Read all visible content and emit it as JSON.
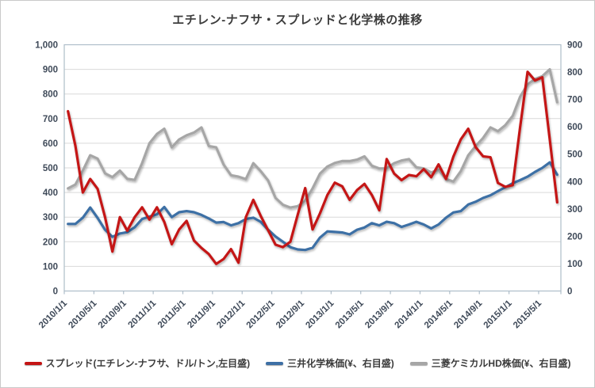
{
  "title": "エチレン-ナフサ・スプレッドと化学株の推移",
  "chart_data": {
    "type": "line",
    "title": "エチレン-ナフサ・スプレッドと化学株の推移",
    "grid": "horizontal",
    "legend_position": "bottom",
    "categories": [
      "2010/1",
      "2010/2",
      "2010/3",
      "2010/4",
      "2010/5",
      "2010/6",
      "2010/7",
      "2010/8",
      "2010/9",
      "2010/10",
      "2010/11",
      "2010/12",
      "2011/1",
      "2011/2",
      "2011/3",
      "2011/4",
      "2011/5",
      "2011/6",
      "2011/7",
      "2011/8",
      "2011/9",
      "2011/10",
      "2011/11",
      "2011/12",
      "2012/1",
      "2012/2",
      "2012/3",
      "2012/4",
      "2012/5",
      "2012/6",
      "2012/7",
      "2012/8",
      "2012/9",
      "2012/10",
      "2012/11",
      "2012/12",
      "2013/1",
      "2013/2",
      "2013/3",
      "2013/4",
      "2013/5",
      "2013/6",
      "2013/7",
      "2013/8",
      "2013/9",
      "2013/10",
      "2013/11",
      "2013/12",
      "2014/1",
      "2014/2",
      "2014/3",
      "2014/4",
      "2014/5",
      "2014/6",
      "2014/7",
      "2014/8",
      "2014/9",
      "2014/10",
      "2014/11",
      "2014/12",
      "2015/1",
      "2015/2",
      "2015/3",
      "2015/4",
      "2015/5",
      "2015/6",
      "2015/7"
    ],
    "x_tick_labels": [
      "2010/1/1",
      "2010/5/1",
      "2010/9/1",
      "2011/1/1",
      "2011/5/1",
      "2011/9/1",
      "2012/1/1",
      "2012/5/1",
      "2012/9/1",
      "2013/1/1",
      "2013/5/1",
      "2013/9/1",
      "2014/1/1",
      "2014/5/1",
      "2014/9/1",
      "2015/1/1",
      "2015/5/1"
    ],
    "x_tick_every_n_months": 4,
    "left_axis": {
      "min": 0,
      "max": 1000,
      "step": 100,
      "tick_labels": [
        "0",
        "100",
        "200",
        "300",
        "400",
        "500",
        "600",
        "700",
        "800",
        "900",
        "1,000"
      ]
    },
    "right_axis": {
      "min": 0,
      "max": 900,
      "step": 100,
      "tick_labels": [
        "0",
        "100",
        "200",
        "300",
        "400",
        "500",
        "600",
        "700",
        "800",
        "900"
      ]
    },
    "series": [
      {
        "name": "スプレッド(エチレン-ナフサ、ドル/トン,左目盛)",
        "axis": "left",
        "color": "#c41414",
        "values": [
          730,
          590,
          400,
          455,
          415,
          300,
          160,
          300,
          245,
          300,
          340,
          290,
          340,
          280,
          190,
          250,
          285,
          205,
          175,
          150,
          110,
          130,
          170,
          115,
          300,
          370,
          305,
          247,
          188,
          178,
          200,
          310,
          418,
          250,
          315,
          390,
          440,
          425,
          370,
          410,
          435,
          390,
          328,
          536,
          477,
          450,
          471,
          466,
          495,
          462,
          514,
          455,
          546,
          616,
          659,
          584,
          547,
          543,
          439,
          423,
          430,
          665,
          890,
          855,
          868,
          615,
          360
        ]
      },
      {
        "name": "三井化学株価(¥、右目盛)",
        "axis": "right",
        "color": "#3d6fa5",
        "values": [
          245,
          245,
          268,
          305,
          267,
          224,
          198,
          210,
          215,
          233,
          263,
          272,
          280,
          307,
          270,
          288,
          292,
          288,
          278,
          265,
          250,
          252,
          240,
          248,
          263,
          268,
          253,
          224,
          199,
          180,
          160,
          152,
          150,
          158,
          195,
          218,
          216,
          214,
          207,
          224,
          232,
          248,
          240,
          253,
          248,
          234,
          243,
          253,
          243,
          229,
          243,
          268,
          287,
          292,
          316,
          326,
          340,
          350,
          365,
          379,
          394,
          405,
          418,
          435,
          450,
          470,
          425
        ]
      },
      {
        "name": "三菱ケミカルHD株価(¥、右目盛)",
        "axis": "right",
        "color": "#a6a6a6",
        "values": [
          375,
          389,
          440,
          496,
          484,
          430,
          416,
          440,
          410,
          406,
          467,
          540,
          574,
          593,
          525,
          554,
          569,
          579,
          598,
          530,
          525,
          462,
          423,
          418,
          409,
          467,
          438,
          404,
          340,
          315,
          305,
          310,
          330,
          375,
          429,
          455,
          468,
          475,
          475,
          480,
          492,
          458,
          448,
          448,
          467,
          477,
          482,
          452,
          448,
          433,
          443,
          409,
          400,
          438,
          496,
          530,
          559,
          598,
          584,
          606,
          640,
          710,
          755,
          775,
          785,
          810,
          690
        ]
      }
    ],
    "style": {
      "gridline_color": "#d9d9d9",
      "border_color": "#aebdc9",
      "line_width": 3.2
    }
  }
}
